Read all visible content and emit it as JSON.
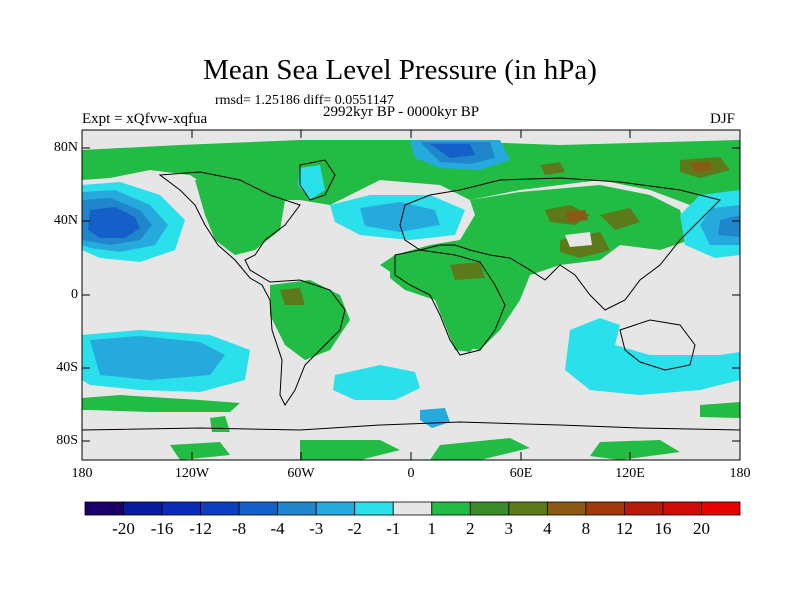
{
  "title": "Mean Sea Level Pressure (in hPa)",
  "stats": "rmsd= 1.25186  diff= 0.0551147",
  "experiment": "Expt = xQfvw-xqfua",
  "period": "2992kyr BP - 0000kyr BP",
  "season": "DJF",
  "map": {
    "lat_ticks": [
      "80N",
      "40N",
      "0",
      "40S",
      "80S"
    ],
    "lon_ticks": [
      "180",
      "120W",
      "60W",
      "0",
      "60E",
      "120E",
      "180"
    ],
    "background_color": "#e6e6e6",
    "land_outline_color": "#000000"
  },
  "colorbar": {
    "labels": [
      "-20",
      "-16",
      "-12",
      "-8",
      "-4",
      "-3",
      "-2",
      "-1",
      "1",
      "2",
      "3",
      "4",
      "8",
      "12",
      "16",
      "20"
    ],
    "colors": [
      "#1a0066",
      "#0a1aa0",
      "#0a2cb8",
      "#0c3fbf",
      "#1560c8",
      "#1f86cc",
      "#26aadd",
      "#2ae0ea",
      "#e6e6e6",
      "#22bb44",
      "#3a8a2a",
      "#5c7a1a",
      "#8a5a14",
      "#a03a0e",
      "#b81a08",
      "#d00a05",
      "#e60000"
    ]
  },
  "anomaly_colors": {
    "light_cyan": "#2ae0ea",
    "cyan": "#26aadd",
    "blue": "#1f86cc",
    "dark_blue": "#1560c8",
    "green": "#22bb44",
    "olive": "#5c7a1a",
    "brown": "#8a5a14"
  }
}
